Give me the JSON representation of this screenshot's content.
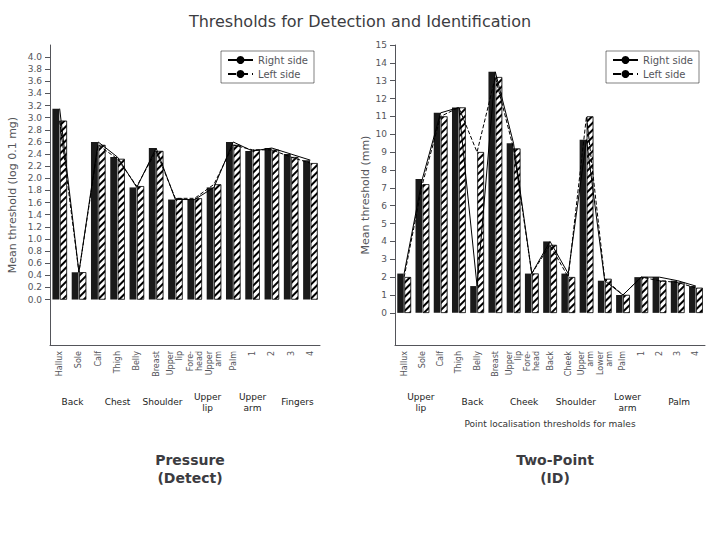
{
  "title": "Thresholds for Detection and Identification",
  "chart_data": [
    {
      "type": "bar",
      "title": "Pressure\n(Detect)",
      "ylabel": "Mean threshold (log 0.1 mg)",
      "categories": [
        "Hallux",
        "Sole",
        "Calf",
        "Thigh",
        "Belly",
        "Breast",
        "Upper\nlip",
        "Fore-\nhead",
        "Upper\narm",
        "Palm",
        "1",
        "2",
        "3",
        "4"
      ],
      "series": [
        {
          "name": "Right side",
          "color": "#1a1a1a",
          "line_style": "solid",
          "values": [
            3.15,
            0.45,
            2.6,
            2.35,
            1.85,
            2.5,
            1.65,
            1.65,
            1.85,
            2.6,
            2.45,
            2.5,
            2.4,
            2.3
          ]
        },
        {
          "name": "Left side",
          "color": "#ffffff",
          "line_style": "dashed",
          "values": [
            2.95,
            0.45,
            2.55,
            2.32,
            1.87,
            2.45,
            1.67,
            1.67,
            1.9,
            2.55,
            2.47,
            2.47,
            2.35,
            2.25
          ]
        }
      ],
      "ylim": [
        -0.75,
        4.2
      ],
      "yticks": [
        {
          "value": 0,
          "label": "0.0"
        },
        0.2,
        0.4,
        0.6,
        0.8,
        {
          "value": 1,
          "label": "1.0"
        },
        1.2,
        1.4,
        1.6,
        1.8,
        {
          "value": 2,
          "label": "2.0"
        },
        2.2,
        2.4,
        2.6,
        2.8,
        {
          "value": 3,
          "label": "3.0"
        },
        3.2,
        3.4,
        3.6,
        3.8,
        {
          "value": 4,
          "label": "4.0"
        }
      ],
      "grid": false,
      "legend": "upper right",
      "annotations": [
        "Back",
        "Chest",
        "Shoulder",
        "Upper\nlip",
        "Upper\narm",
        "Fingers"
      ]
    },
    {
      "type": "bar",
      "title": "Two-Point\n(ID)",
      "ylabel": "Mean threshold (mm)",
      "categories": [
        "Hallux",
        "Sole",
        "Calf",
        "Thigh",
        "Belly",
        "Breast",
        "Upper\nlip",
        "Fore-\nhead",
        "Back",
        "Cheek",
        "Upper\narm",
        "Lower\narm",
        "Palm",
        "1",
        "2",
        "3",
        "4"
      ],
      "series": [
        {
          "name": "Right side",
          "color": "#1a1a1a",
          "line_style": "solid",
          "values": [
            2.2,
            7.5,
            11.2,
            11.5,
            1.5,
            13.5,
            9.5,
            2.2,
            4.0,
            2.2,
            9.7,
            1.8,
            1.0,
            2.0,
            2.0,
            1.8,
            1.5
          ]
        },
        {
          "name": "Left side",
          "color": "#ffffff",
          "line_style": "dashed",
          "values": [
            2.0,
            7.2,
            11.0,
            11.5,
            9.0,
            13.2,
            9.2,
            2.2,
            3.8,
            2.0,
            11.0,
            1.9,
            1.0,
            2.0,
            1.8,
            1.7,
            1.4
          ]
        }
      ],
      "ylim": [
        -1.8,
        15
      ],
      "yticks": [
        0,
        1,
        2,
        3,
        4,
        5,
        6,
        7,
        8,
        9,
        10,
        11,
        12,
        13,
        14,
        15
      ],
      "grid": false,
      "legend": "upper right",
      "annotations": [
        "Point localisation thresholds for males",
        "Upper\nlip",
        "Back",
        "Cheek",
        "Shoulder",
        "Lower\narm",
        "Palm"
      ]
    }
  ]
}
